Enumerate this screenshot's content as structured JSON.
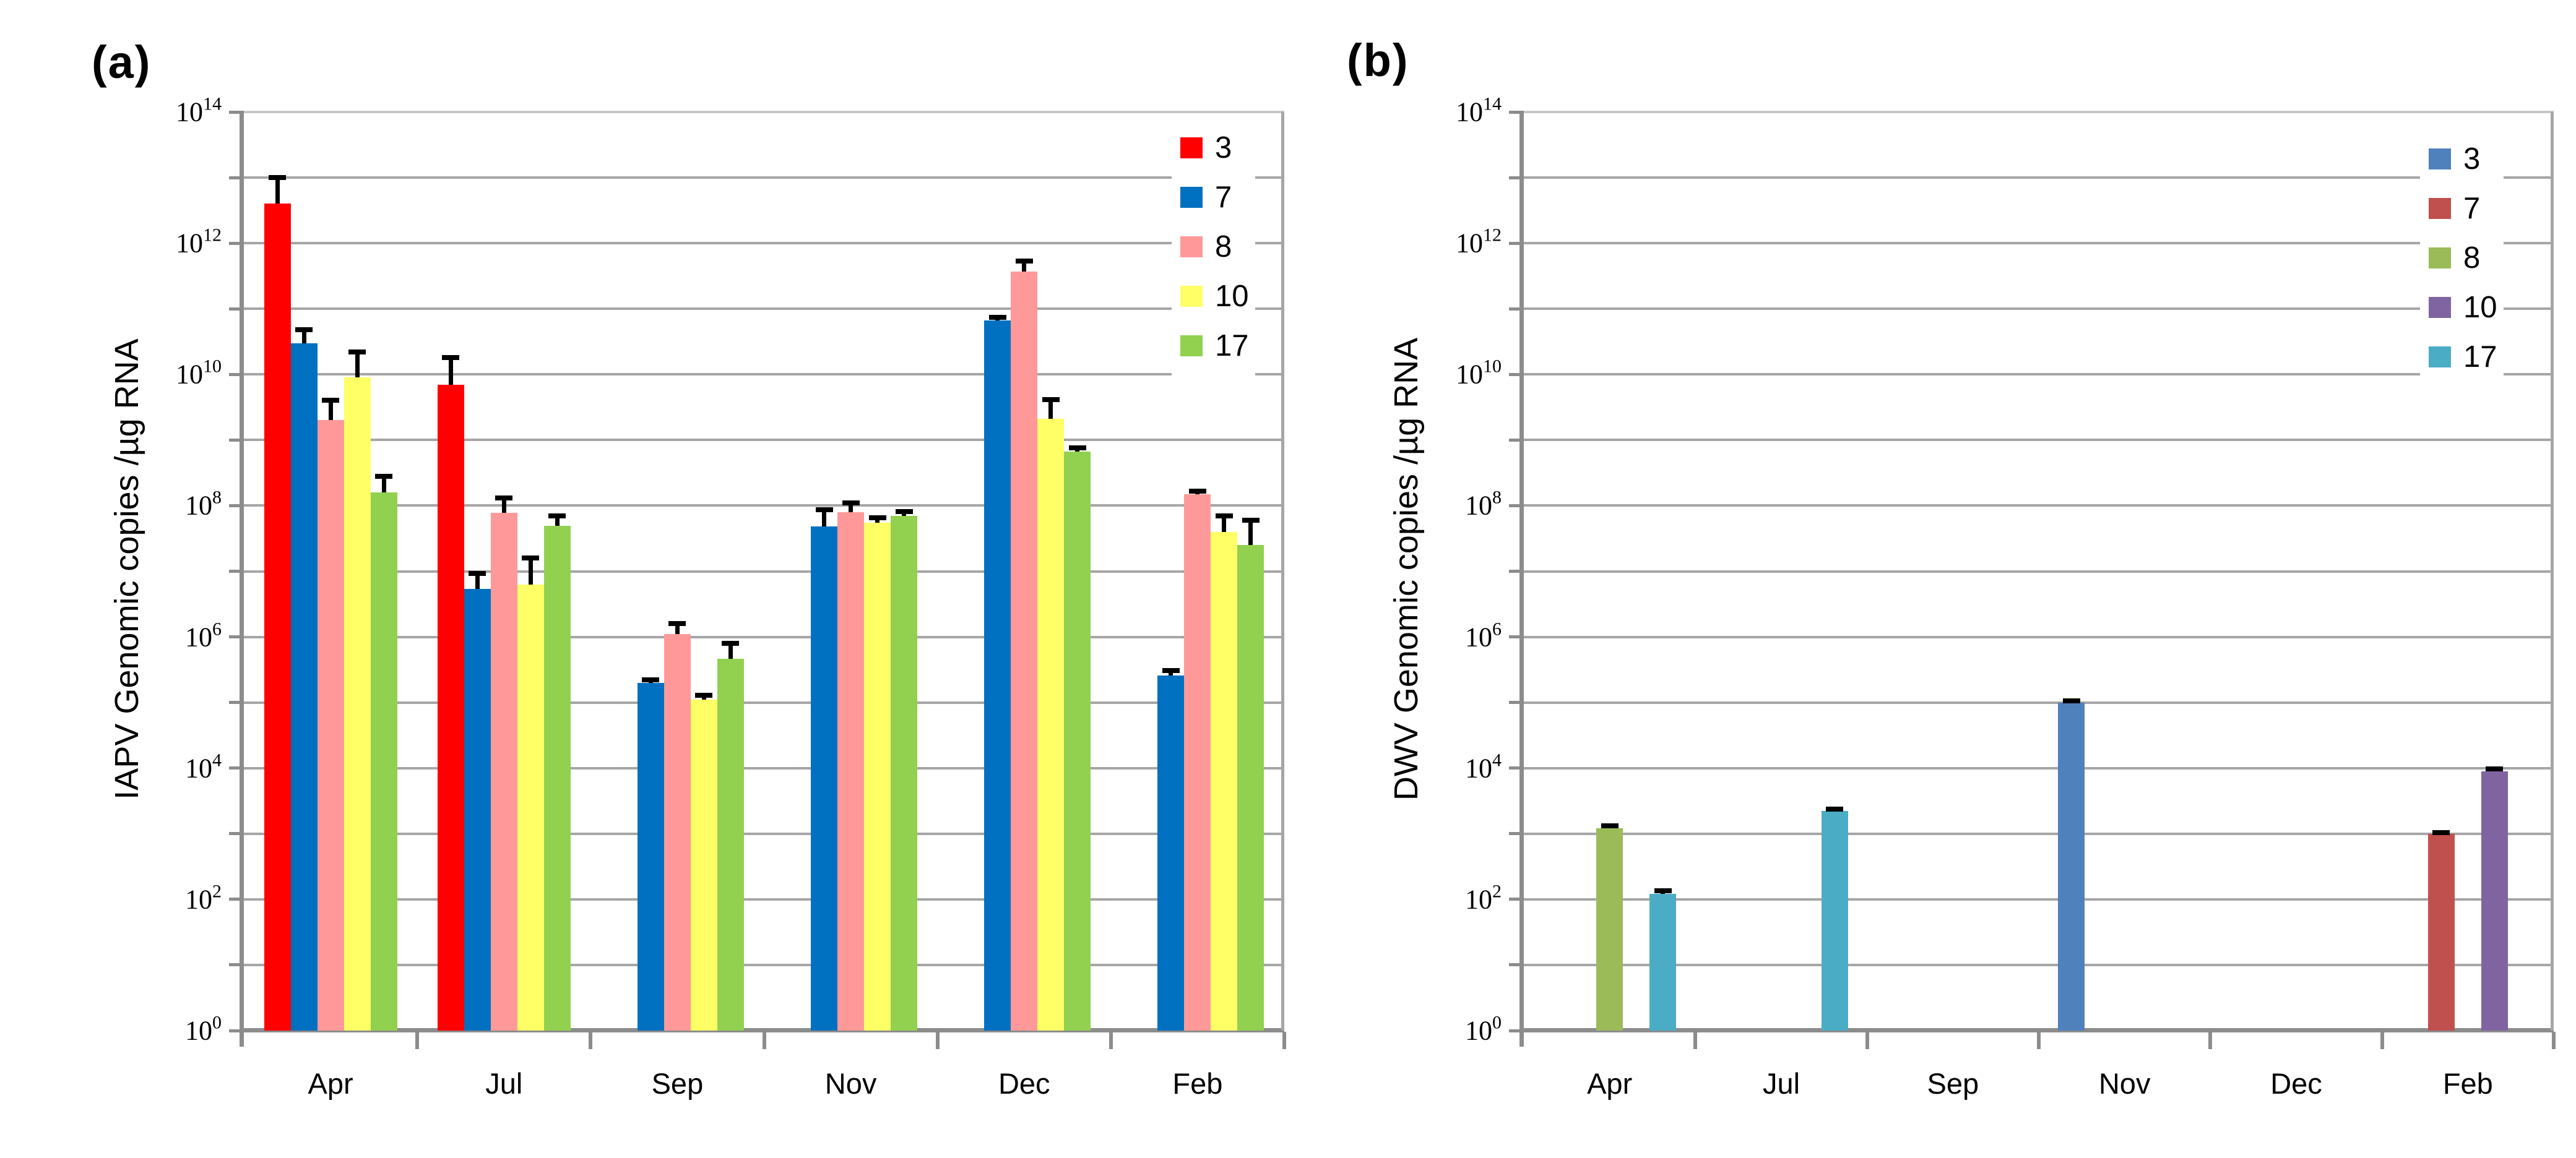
{
  "figure": {
    "background": "#FFFFFF",
    "gridline_color": "#A6A6A6",
    "axis_color": "#8C8C8C",
    "error_bar_color": "#000000"
  },
  "chart_data": [
    {
      "id": "a",
      "type": "bar",
      "panel_label": "(a)",
      "title": "",
      "xlabel": "",
      "ylabel": "IAPV Genomic copies /µg RNA",
      "yscale": "log10",
      "ylim": [
        1,
        100000000000000.0
      ],
      "ytick_exponents": [
        0,
        2,
        4,
        6,
        8,
        10,
        12,
        14
      ],
      "grid": "every-decade",
      "legend_position": "top-right",
      "categories": [
        "Apr",
        "Jul",
        "Sep",
        "Nov",
        "Dec",
        "Feb"
      ],
      "series": [
        {
          "name": "3",
          "color": "#FF0000",
          "values": [
            4000000000000.0,
            7000000000.0,
            null,
            null,
            null,
            null
          ],
          "errors_upper": [
            10000000000000.0,
            18000000000.0,
            null,
            null,
            null,
            null
          ]
        },
        {
          "name": "7",
          "color": "#0070C0",
          "values": [
            30000000000.0,
            5400000.0,
            200000.0,
            48000000.0,
            66000000000.0,
            260000.0
          ],
          "errors_upper": [
            48000000000.0,
            9300000.0,
            220000.0,
            87000000.0,
            74000000000.0,
            310000.0
          ]
        },
        {
          "name": "8",
          "color": "#FF9999",
          "values": [
            2000000000.0,
            78000000.0,
            1100000.0,
            80000000.0,
            370000000000.0,
            150000000.0
          ],
          "errors_upper": [
            4000000000.0,
            130000000.0,
            1600000.0,
            110000000.0,
            540000000000.0,
            165000000.0
          ]
        },
        {
          "name": "10",
          "color": "#FFFF66",
          "values": [
            9000000000.0,
            6300000.0,
            110000.0,
            55000000.0,
            2100000000.0,
            40000000.0
          ],
          "errors_upper": [
            22000000000.0,
            16000000.0,
            130000.0,
            66000000.0,
            4100000000.0,
            70000000.0
          ]
        },
        {
          "name": "17",
          "color": "#92D050",
          "values": [
            160000000.0,
            49000000.0,
            460000.0,
            70000000.0,
            670000000.0,
            25000000.0
          ],
          "errors_upper": [
            280000000.0,
            70000000.0,
            800000.0,
            82000000.0,
            760000000.0,
            60000000.0
          ]
        }
      ]
    },
    {
      "id": "b",
      "type": "bar",
      "panel_label": "(b)",
      "title": "",
      "xlabel": "",
      "ylabel": "DWV Genomic copies /µg RNA",
      "yscale": "log10",
      "ylim": [
        1,
        100000000000000.0
      ],
      "ytick_exponents": [
        0,
        2,
        4,
        6,
        8,
        10,
        12,
        14
      ],
      "grid": "every-decade",
      "legend_position": "top-right",
      "categories": [
        "Apr",
        "Jul",
        "Sep",
        "Nov",
        "Dec",
        "Feb"
      ],
      "series": [
        {
          "name": "3",
          "color": "#4F81BD",
          "values": [
            null,
            null,
            null,
            100000.0,
            null,
            null
          ],
          "errors_upper": [
            null,
            null,
            null,
            105000.0,
            null,
            null
          ]
        },
        {
          "name": "7",
          "color": "#C0504D",
          "values": [
            null,
            null,
            null,
            null,
            null,
            1000.0
          ],
          "errors_upper": [
            null,
            null,
            null,
            null,
            null,
            1050.0
          ]
        },
        {
          "name": "8",
          "color": "#9BBB59",
          "values": [
            1200.0,
            null,
            null,
            null,
            null,
            null
          ],
          "errors_upper": [
            1320.0,
            null,
            null,
            null,
            null,
            null
          ]
        },
        {
          "name": "10",
          "color": "#8064A2",
          "values": [
            null,
            null,
            null,
            null,
            null,
            9000.0
          ],
          "errors_upper": [
            null,
            null,
            null,
            null,
            null,
            9800.0
          ]
        },
        {
          "name": "17",
          "color": "#4BACC6",
          "values": [
            120.0,
            2200.0,
            null,
            null,
            null,
            null
          ],
          "errors_upper": [
            135.0,
            2350.0,
            null,
            null,
            null,
            null
          ]
        }
      ]
    }
  ]
}
